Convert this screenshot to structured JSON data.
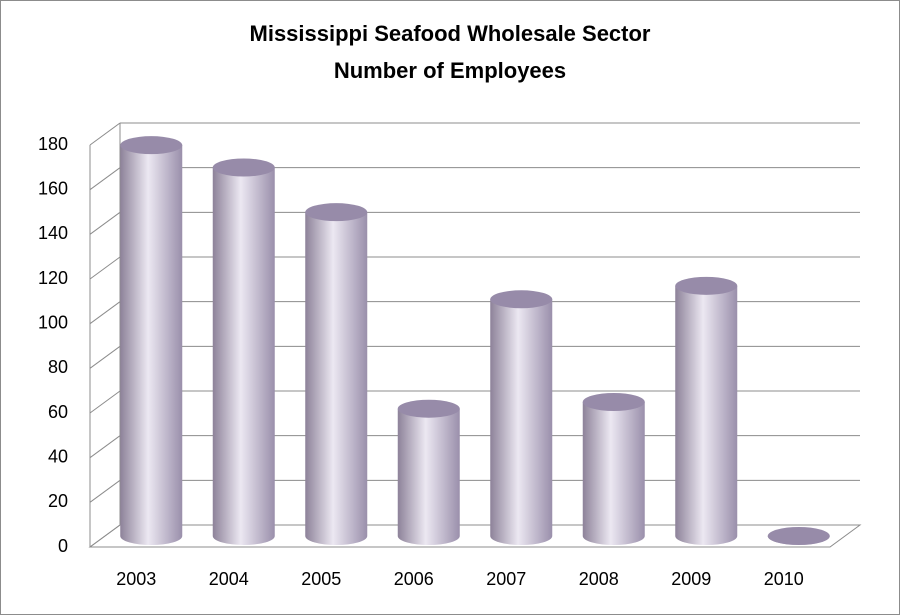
{
  "chart_data": {
    "type": "cylinder",
    "title": [
      "Mississippi Seafood Wholesale Sector",
      "Number of Employees"
    ],
    "categories": [
      "2003",
      "2004",
      "2005",
      "2006",
      "2007",
      "2008",
      "2009",
      "2010"
    ],
    "values": [
      175,
      165,
      145,
      57,
      106,
      60,
      112,
      0
    ],
    "color": "#b8afc9",
    "ylim": [
      0,
      180
    ],
    "yticks": [
      0,
      20,
      40,
      60,
      80,
      100,
      120,
      140,
      160,
      180
    ],
    "grid": true
  }
}
